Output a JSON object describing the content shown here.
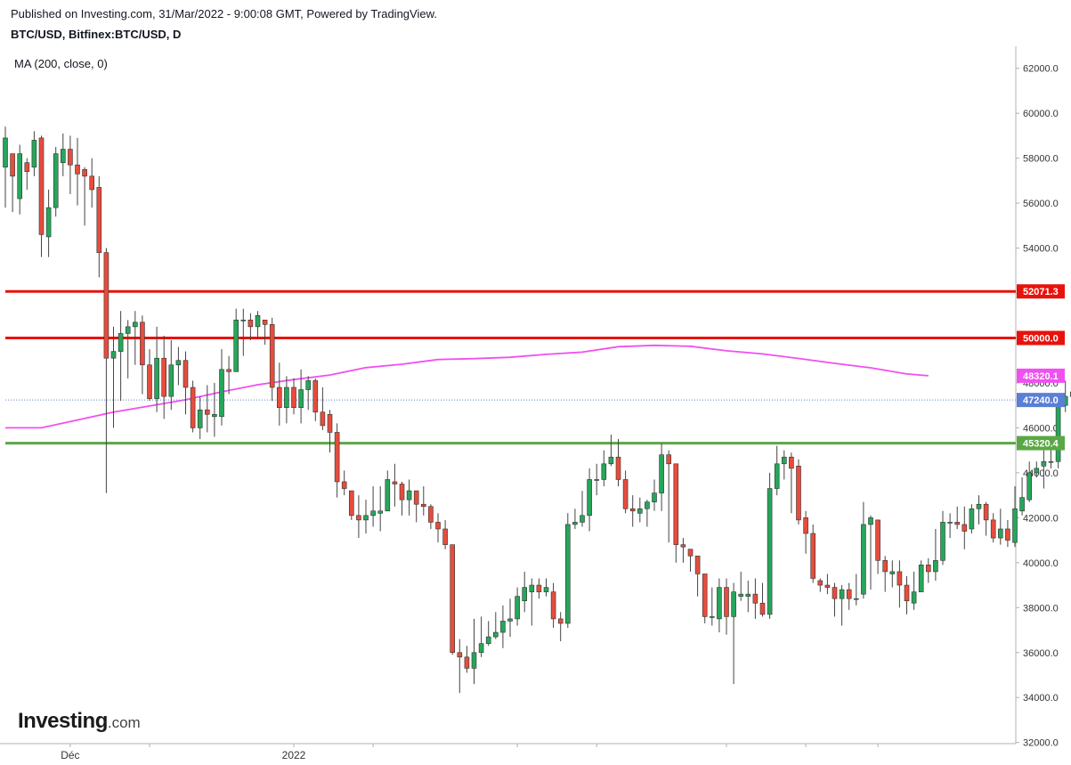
{
  "header": {
    "published": "Published on Investing.com, 31/Mar/2022 - 9:00:08 GMT, Powered by TradingView.",
    "symbol": "BTC/USD, Bitfinex:BTC/USD, D",
    "indicator": "MA (200, close, 0)"
  },
  "logo": {
    "brand": "Investing",
    "domain": ".com"
  },
  "colors": {
    "up": "#26a65b",
    "down": "#e74c3c",
    "wick": "#444444",
    "ma": "#f050f0",
    "resistance": "#e8120c",
    "support": "#5aa845",
    "last_price": "#5b7fd6",
    "axis": "#b0b0b0"
  },
  "chart_data": {
    "type": "candlestick",
    "ylim": [
      31500,
      62500
    ],
    "y_ticks": [
      "62000.0",
      "60000.0",
      "58000.0",
      "56000.0",
      "54000.0",
      "52000.0",
      "50000.0",
      "48000.0",
      "46000.0",
      "44000.0",
      "42000.0",
      "40000.0",
      "38000.0",
      "36000.0",
      "34000.0",
      "32000.0"
    ],
    "x_labels": [
      {
        "index": 9,
        "label": "Déc"
      },
      {
        "index": 40,
        "label": "2022"
      }
    ],
    "x_tick_indices": [
      9,
      20,
      40,
      51,
      71,
      82,
      100,
      111,
      121
    ],
    "candles": [
      [
        57600,
        58900,
        59400,
        55800
      ],
      [
        58200,
        57200,
        57900,
        55600
      ],
      [
        56200,
        58200,
        58600,
        55500
      ],
      [
        57800,
        57400,
        58000,
        56600
      ],
      [
        57600,
        58800,
        59200,
        57200
      ],
      [
        58900,
        54600,
        59000,
        53600
      ],
      [
        54500,
        55800,
        56600,
        53600
      ],
      [
        55800,
        58200,
        58500,
        55400
      ],
      [
        57800,
        58400,
        59100,
        57200
      ],
      [
        58400,
        57700,
        59000,
        56400
      ],
      [
        57700,
        57300,
        58900,
        55900
      ],
      [
        57500,
        57200,
        57600,
        55000
      ],
      [
        57200,
        56600,
        58000,
        55800
      ],
      [
        56700,
        53800,
        57200,
        52700
      ],
      [
        53800,
        49100,
        54000,
        43100
      ],
      [
        49100,
        49400,
        50500,
        46000
      ],
      [
        49400,
        50200,
        51200,
        47200
      ],
      [
        50200,
        50500,
        50800,
        48200
      ],
      [
        50500,
        50700,
        51200,
        48800
      ],
      [
        50700,
        48800,
        51000,
        47500
      ],
      [
        48800,
        47300,
        49500,
        47200
      ],
      [
        47300,
        49100,
        50500,
        46700
      ],
      [
        49100,
        47400,
        50100,
        46400
      ],
      [
        47400,
        48800,
        49900,
        46800
      ],
      [
        48800,
        49000,
        49600,
        47900
      ],
      [
        49000,
        47800,
        49400,
        46600
      ],
      [
        47800,
        46000,
        48100,
        45800
      ],
      [
        46000,
        46800,
        47400,
        45500
      ],
      [
        46800,
        46600,
        47900,
        45800
      ],
      [
        46500,
        46600,
        48000,
        45600
      ],
      [
        46500,
        48600,
        49500,
        46100
      ],
      [
        48600,
        48500,
        49200,
        47500
      ],
      [
        48500,
        50800,
        51300,
        48900
      ],
      [
        50800,
        50800,
        51300,
        49200
      ],
      [
        50800,
        50500,
        51100,
        49900
      ],
      [
        50500,
        51000,
        51200,
        50000
      ],
      [
        50800,
        50600,
        50800,
        49700
      ],
      [
        50600,
        47800,
        50900,
        47200
      ],
      [
        47800,
        46900,
        48900,
        46100
      ],
      [
        46900,
        47800,
        48300,
        46200
      ],
      [
        47800,
        46900,
        48200,
        46600
      ],
      [
        46900,
        47700,
        48600,
        46200
      ],
      [
        47700,
        48100,
        48300,
        46800
      ],
      [
        48100,
        46700,
        48200,
        46300
      ],
      [
        46700,
        46100,
        47800,
        45900
      ],
      [
        46600,
        45800,
        46800,
        44900
      ],
      [
        45800,
        43600,
        46200,
        42900
      ],
      [
        43600,
        43300,
        44100,
        43000
      ],
      [
        43200,
        42100,
        43200,
        41900
      ],
      [
        42100,
        41900,
        43000,
        41100
      ],
      [
        41900,
        42100,
        42800,
        41300
      ],
      [
        42100,
        42300,
        43400,
        41600
      ],
      [
        42200,
        42300,
        43400,
        41400
      ],
      [
        42300,
        43700,
        44100,
        42500
      ],
      [
        43600,
        43500,
        44400,
        42500
      ],
      [
        43500,
        42800,
        43600,
        42100
      ],
      [
        42800,
        43200,
        43700,
        42100
      ],
      [
        43200,
        42600,
        43200,
        41800
      ],
      [
        42600,
        42500,
        43400,
        42100
      ],
      [
        42500,
        41800,
        42600,
        41500
      ],
      [
        41800,
        41500,
        42200,
        40900
      ],
      [
        41500,
        40800,
        41900,
        40600
      ],
      [
        40800,
        36000,
        40800,
        35900
      ],
      [
        36000,
        35800,
        36600,
        34200
      ],
      [
        35800,
        35300,
        36300,
        35100
      ],
      [
        35300,
        36000,
        37500,
        34600
      ],
      [
        36000,
        36400,
        37600,
        35800
      ],
      [
        36400,
        36700,
        37400,
        36300
      ],
      [
        36700,
        36900,
        37800,
        36600
      ],
      [
        36900,
        37400,
        38100,
        36200
      ],
      [
        37400,
        37500,
        38400,
        36700
      ],
      [
        37500,
        38500,
        38900,
        37200
      ],
      [
        38300,
        38900,
        39600,
        37800
      ],
      [
        38700,
        39000,
        39300,
        37200
      ],
      [
        39000,
        38700,
        39300,
        38400
      ],
      [
        38700,
        38900,
        39300,
        38500
      ],
      [
        38700,
        37500,
        39100,
        37100
      ],
      [
        37500,
        37300,
        37800,
        36500
      ],
      [
        37300,
        41700,
        42200,
        37100
      ],
      [
        41700,
        41800,
        42400,
        41500
      ],
      [
        41800,
        42100,
        43200,
        41600
      ],
      [
        42100,
        43700,
        44200,
        41400
      ],
      [
        43700,
        43700,
        44400,
        43000
      ],
      [
        43700,
        44400,
        45000,
        43400
      ],
      [
        44400,
        44700,
        45700,
        44300
      ],
      [
        44700,
        43700,
        45500,
        43400
      ],
      [
        43700,
        42400,
        44100,
        42200
      ],
      [
        42400,
        42300,
        43000,
        41600
      ],
      [
        42200,
        42400,
        42900,
        41800
      ],
      [
        42400,
        42700,
        42800,
        41600
      ],
      [
        42700,
        43100,
        43700,
        42300
      ],
      [
        43100,
        44800,
        45300,
        42300
      ],
      [
        44800,
        44400,
        45000,
        40900
      ],
      [
        44400,
        40800,
        44400,
        40000
      ],
      [
        40800,
        40700,
        41100,
        40000
      ],
      [
        40600,
        40300,
        40600,
        39600
      ],
      [
        40300,
        39500,
        40300,
        38500
      ],
      [
        39500,
        37600,
        39500,
        37300
      ],
      [
        37600,
        37600,
        38900,
        37200
      ],
      [
        37500,
        38900,
        39300,
        36900
      ],
      [
        38900,
        37600,
        39300,
        36800
      ],
      [
        37600,
        38700,
        39100,
        34600
      ],
      [
        38500,
        38600,
        39600,
        38300
      ],
      [
        38500,
        38600,
        39200,
        37800
      ],
      [
        38600,
        38200,
        39300,
        37500
      ],
      [
        38200,
        37700,
        39100,
        37600
      ],
      [
        37700,
        43300,
        44000,
        37500
      ],
      [
        43300,
        44400,
        45200,
        43000
      ],
      [
        44400,
        44700,
        45000,
        43700
      ],
      [
        44700,
        44200,
        44900,
        42200
      ],
      [
        44300,
        41900,
        44600,
        41700
      ],
      [
        42000,
        41300,
        42300,
        40400
      ],
      [
        41300,
        39300,
        41700,
        39100
      ],
      [
        39200,
        39000,
        39300,
        38700
      ],
      [
        39000,
        38900,
        39500,
        38600
      ],
      [
        38900,
        38400,
        39100,
        37600
      ],
      [
        38400,
        38800,
        39000,
        37200
      ],
      [
        38800,
        38400,
        39100,
        37900
      ],
      [
        38400,
        38400,
        39500,
        38100
      ],
      [
        38600,
        41700,
        42700,
        38400
      ],
      [
        41700,
        42000,
        42100,
        38800
      ],
      [
        41900,
        40100,
        41900,
        39500
      ],
      [
        40100,
        39600,
        40300,
        38700
      ],
      [
        39500,
        39600,
        40100,
        38900
      ],
      [
        39600,
        39000,
        40100,
        38000
      ],
      [
        39000,
        38300,
        39400,
        37700
      ],
      [
        38200,
        38700,
        39600,
        37900
      ],
      [
        38700,
        39900,
        40100,
        38700
      ],
      [
        39900,
        39600,
        40200,
        39100
      ],
      [
        39600,
        40100,
        41500,
        39200
      ],
      [
        40100,
        41800,
        42300,
        39900
      ],
      [
        41800,
        41800,
        42200,
        41100
      ],
      [
        41800,
        41700,
        42500,
        41500
      ],
      [
        41700,
        41400,
        42500,
        40600
      ],
      [
        41500,
        42400,
        42600,
        41300
      ],
      [
        42400,
        42600,
        43000,
        41700
      ],
      [
        42600,
        41900,
        42700,
        41200
      ],
      [
        41900,
        41100,
        42200,
        40900
      ],
      [
        41100,
        41500,
        42400,
        40800
      ],
      [
        41500,
        41000,
        41900,
        40700
      ],
      [
        40900,
        42400,
        43400,
        40700
      ],
      [
        42300,
        42900,
        43800,
        42100
      ],
      [
        42800,
        44000,
        44500,
        42700
      ],
      [
        44000,
        44200,
        44500,
        43800
      ],
      [
        44300,
        44500,
        45000,
        43300
      ],
      [
        44500,
        44500,
        45200,
        44200
      ],
      [
        44500,
        47000,
        47400,
        44200
      ],
      [
        47000,
        47400,
        48100,
        46700
      ],
      [
        47400,
        47600,
        48100,
        46800
      ],
      [
        47600,
        47200,
        48000,
        46900
      ],
      [
        47200,
        47400,
        47700,
        46800
      ],
      [
        47400,
        47240,
        47600,
        46800
      ]
    ],
    "moving_average": {
      "name": "MA (200, close, 0)",
      "points": [
        [
          0,
          46000
        ],
        [
          5,
          46000
        ],
        [
          10,
          46350
        ],
        [
          15,
          46700
        ],
        [
          20,
          46970
        ],
        [
          25,
          47250
        ],
        [
          30,
          47600
        ],
        [
          35,
          47920
        ],
        [
          40,
          48150
        ],
        [
          45,
          48350
        ],
        [
          50,
          48680
        ],
        [
          55,
          48830
        ],
        [
          60,
          49040
        ],
        [
          65,
          49080
        ],
        [
          70,
          49140
        ],
        [
          75,
          49270
        ],
        [
          80,
          49370
        ],
        [
          85,
          49610
        ],
        [
          90,
          49670
        ],
        [
          95,
          49630
        ],
        [
          100,
          49430
        ],
        [
          105,
          49290
        ],
        [
          110,
          49090
        ],
        [
          115,
          48870
        ],
        [
          120,
          48670
        ],
        [
          125,
          48400
        ],
        [
          128,
          48320
        ]
      ]
    },
    "horizontal_levels": [
      {
        "label": "52071.3",
        "value": 52071.3,
        "color": "#e8120c",
        "style": "solid",
        "text_color": "#ffffff"
      },
      {
        "label": "50000.0",
        "value": 50000.0,
        "color": "#e8120c",
        "style": "solid",
        "text_color": "#ffffff"
      },
      {
        "label": "45320.4",
        "value": 45320.4,
        "color": "#5aa845",
        "style": "solid",
        "text_color": "#ffffff"
      },
      {
        "label": "47240.0",
        "value": 47240.0,
        "color": "#5b7fd6",
        "style": "dotted",
        "text_color": "#ffffff"
      }
    ],
    "ma_tag": {
      "label": "48320.1",
      "value": 48320.1,
      "color": "#f050f0"
    }
  }
}
